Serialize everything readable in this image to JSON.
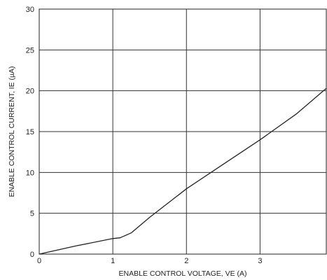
{
  "chart_data": {
    "type": "line",
    "title": "",
    "xlabel": "ENABLE CONTROL VOLTAGE, VE (A)",
    "ylabel": "ENABLE CONTROL CURRENT, IE (µA)",
    "xlim": [
      0,
      3.9
    ],
    "ylim": [
      0,
      30
    ],
    "x_ticks": [
      0,
      1,
      2,
      3
    ],
    "y_ticks": [
      0,
      5,
      10,
      15,
      20,
      25,
      30
    ],
    "x_tick_labels": [
      "0",
      "1",
      "2",
      "3"
    ],
    "y_tick_labels": [
      "0",
      "5",
      "10",
      "15",
      "20",
      "25",
      "30"
    ],
    "grid": true,
    "legend": "none",
    "series": [
      {
        "x": [
          0,
          0.5,
          1.0,
          1.1,
          1.25,
          1.5,
          2.0,
          2.5,
          3.0,
          3.5,
          3.9
        ],
        "y": [
          0,
          1.0,
          1.9,
          2.0,
          2.6,
          4.5,
          8.0,
          11.0,
          14.0,
          17.2,
          20.3
        ],
        "color": "#222222"
      }
    ]
  }
}
